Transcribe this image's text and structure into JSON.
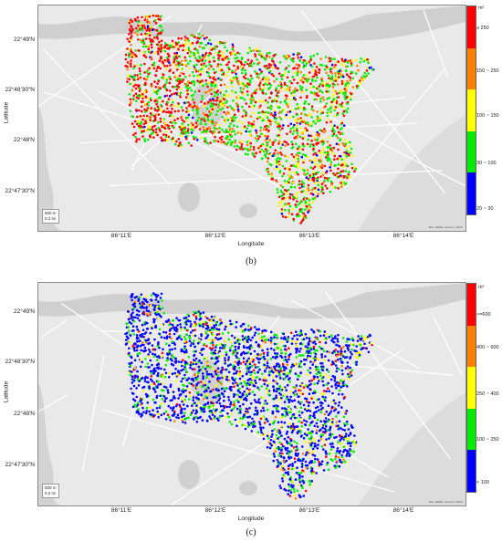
{
  "panels": [
    {
      "caption": "(b)",
      "xlabel": "Longitude",
      "ylabel": "Latitude",
      "yticks": [
        "22°49'N",
        "22°48'30\"N",
        "22°48'N",
        "22°47'30\"N"
      ],
      "xticks": [
        "86°11'E",
        "86°12'E",
        "86°13'E",
        "86°14'E"
      ],
      "unit": "m²",
      "legend": [
        {
          "label": "≥ 250",
          "color": "#ff0000"
        },
        {
          "label": "150 ~ 250",
          "color": "#ff8000"
        },
        {
          "label": "100 ~ 150",
          "color": "#ffff00"
        },
        {
          "label": "30 ~ 100",
          "color": "#00ee00"
        },
        {
          "label": "20 ~ 30",
          "color": "#0000ff"
        }
      ],
      "scale": [
        "500 m",
        "0.2 mi"
      ],
      "attribution": "Esri, HERE, Garmin, USGS",
      "mix": [
        0.3,
        0.12,
        0.18,
        0.36,
        0.04
      ]
    },
    {
      "caption": "(c)",
      "xlabel": "Longitude",
      "ylabel": "Latitude",
      "yticks": [
        "22°49'N",
        "22°48'30\"N",
        "22°48'N",
        "22°47'30\"N"
      ],
      "xticks": [
        "86°11'E",
        "86°12'E",
        "86°13'E",
        "86°14'E"
      ],
      "unit": "m²",
      "legend": [
        {
          "label": ">=600",
          "color": "#ff0000"
        },
        {
          "label": "400 ~ 600",
          "color": "#ff8000"
        },
        {
          "label": "250 ~ 400",
          "color": "#ffff00"
        },
        {
          "label": "100 ~ 250",
          "color": "#00ee00"
        },
        {
          "label": "< 100",
          "color": "#0000ff"
        }
      ],
      "scale": [
        "500 m",
        "0.2 mi"
      ],
      "attribution": "Esri, HERE, Garmin, USGS",
      "mix": [
        0.06,
        0.04,
        0.1,
        0.22,
        0.58
      ]
    }
  ]
}
